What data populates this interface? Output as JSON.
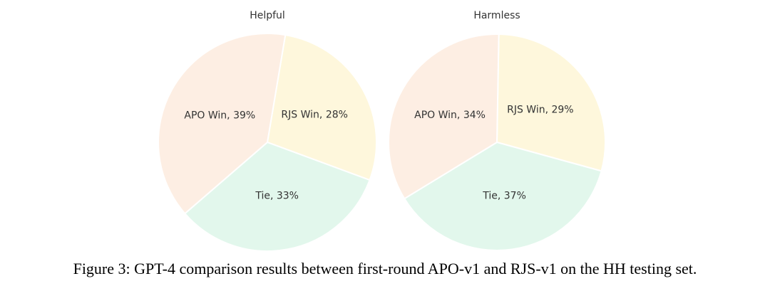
{
  "chart_data": [
    {
      "type": "pie",
      "title": "Helpful",
      "categories": [
        "RJS Win",
        "Tie",
        "APO Win"
      ],
      "values": [
        28,
        33,
        39
      ],
      "value_labels": [
        "RJS Win, 28%",
        "Tie, 33%",
        "APO Win, 39%"
      ],
      "colors": [
        "#fef7dc",
        "#e2f7ec",
        "#fdeee3"
      ]
    },
    {
      "type": "pie",
      "title": "Harmless",
      "categories": [
        "RJS Win",
        "Tie",
        "APO Win"
      ],
      "values": [
        29,
        37,
        34
      ],
      "value_labels": [
        "RJS Win, 29%",
        "Tie, 37%",
        "APO Win, 34%"
      ],
      "colors": [
        "#fef7dc",
        "#e2f7ec",
        "#fdeee3"
      ]
    }
  ],
  "caption": "Figure 3: GPT-4 comparison results between first-round APO-v1 and RJS-v1 on the HH testing set."
}
